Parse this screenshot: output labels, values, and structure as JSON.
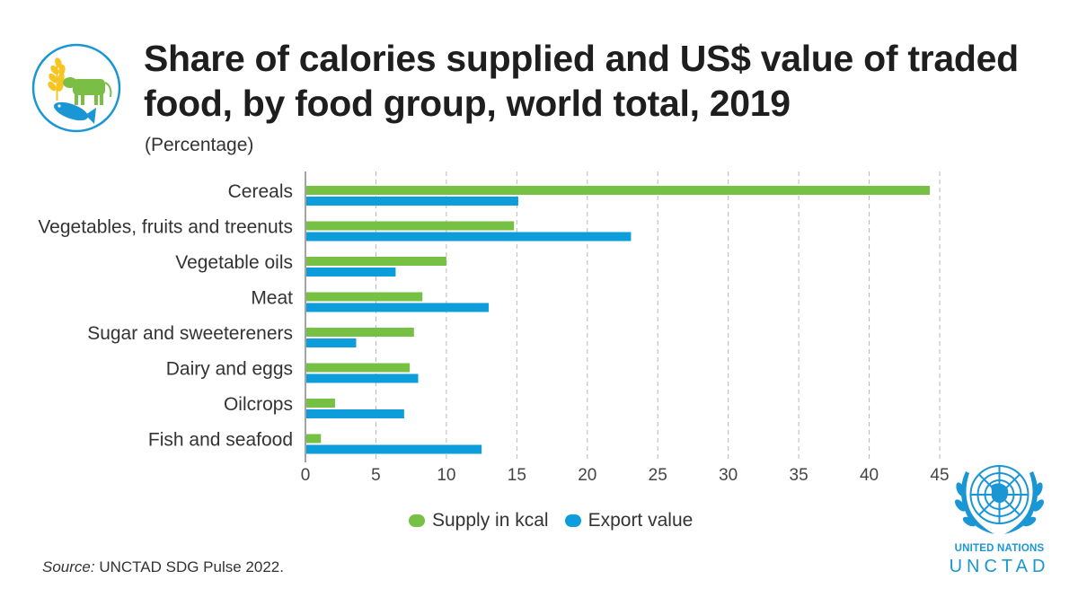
{
  "header": {
    "title": "Share of calories supplied and US$ value of traded food, by food group, world total, 2019",
    "subtitle": "(Percentage)"
  },
  "icons": {
    "left_logo": "food-groups-icon",
    "right_logo": "un-emblem-icon"
  },
  "branding": {
    "line1": "UNITED NATIONS",
    "line2": "UNCTAD"
  },
  "source": {
    "label": "Source:",
    "text": "UNCTAD SDG Pulse 2022."
  },
  "colors": {
    "supply": "#76c043",
    "export": "#0d9ddb",
    "grid": "#b8b8b8",
    "axis": "#666666",
    "brand": "#1b96d4"
  },
  "chart_data": {
    "type": "bar",
    "orientation": "horizontal",
    "categories": [
      "Cereals",
      "Vegetables, fruits and treenuts",
      "Vegetable oils",
      "Meat",
      "Sugar and sweetereners",
      "Dairy and eggs",
      "Oilcrops",
      "Fish and seafood"
    ],
    "series": [
      {
        "name": "Supply in kcal",
        "values": [
          44.3,
          14.8,
          10.0,
          8.3,
          7.7,
          7.4,
          2.1,
          1.1
        ]
      },
      {
        "name": "Export value",
        "values": [
          15.1,
          23.1,
          6.4,
          13.0,
          3.6,
          8.0,
          7.0,
          12.5
        ]
      }
    ],
    "xlim": [
      0,
      45
    ],
    "xticks": [
      0,
      5,
      10,
      15,
      20,
      25,
      30,
      35,
      40,
      45
    ],
    "grid": true,
    "legend": "bottom"
  }
}
